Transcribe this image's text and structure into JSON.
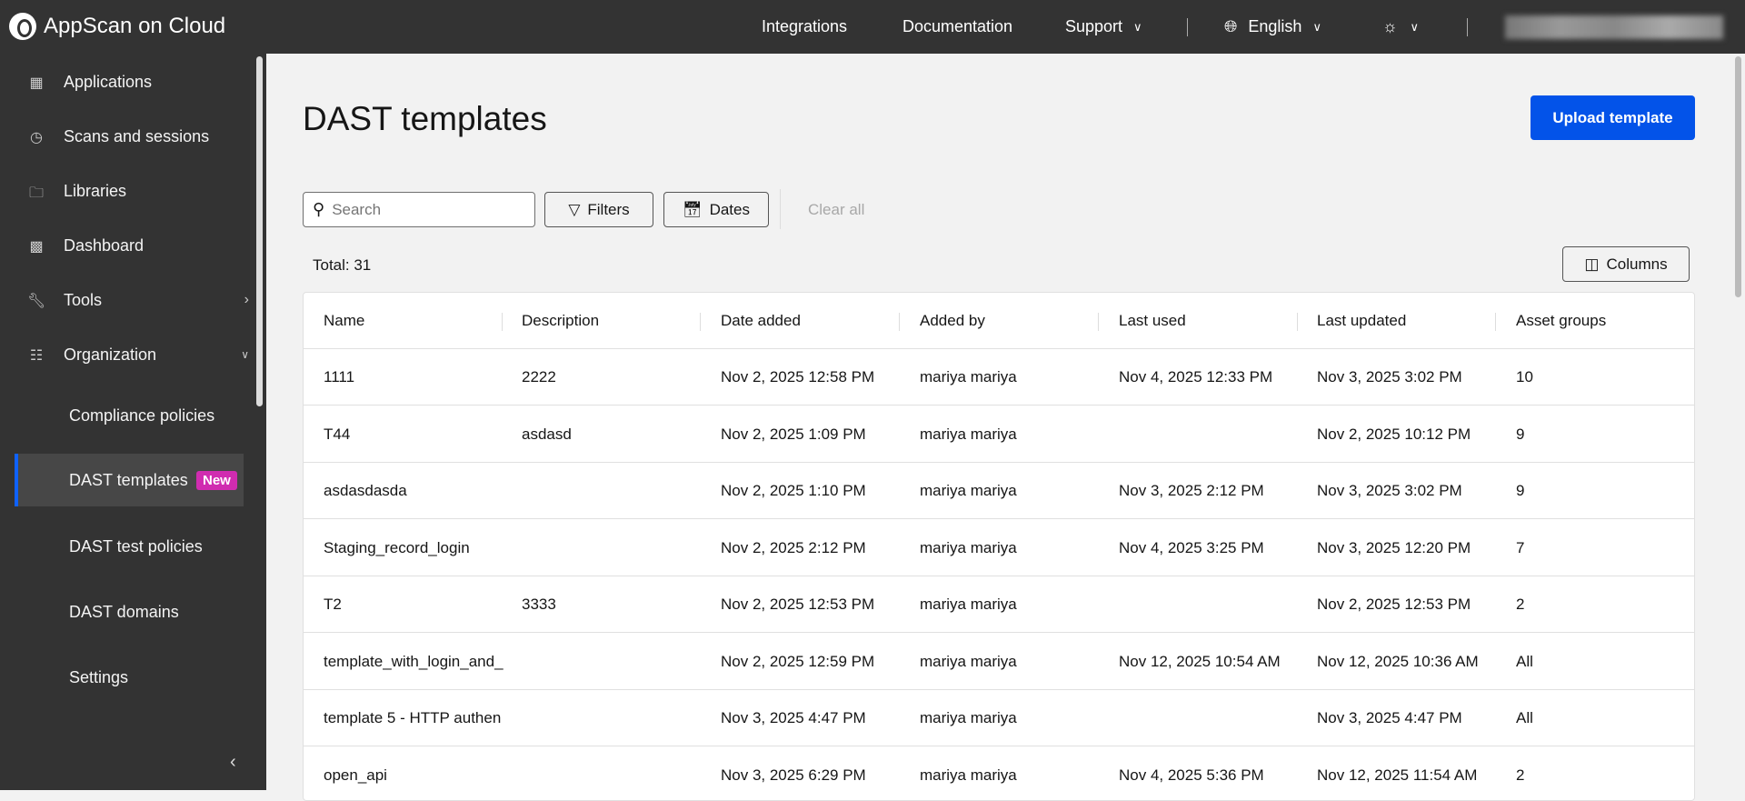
{
  "header": {
    "app_name": "AppScan on Cloud",
    "nav": [
      "Integrations",
      "Documentation",
      "Support"
    ],
    "language": "English",
    "theme_icon": "sun-icon",
    "user_name_obscured": true
  },
  "sidebar": {
    "items": [
      {
        "label": "Applications",
        "icon": "applications-icon"
      },
      {
        "label": "Scans and sessions",
        "icon": "scans-icon"
      },
      {
        "label": "Libraries",
        "icon": "folder-code-icon"
      },
      {
        "label": "Dashboard",
        "icon": "chart-bar-icon"
      },
      {
        "label": "Tools",
        "icon": "wrench-icon"
      },
      {
        "label": "Organization",
        "icon": "hierarchy-icon"
      }
    ],
    "sub_items": [
      {
        "label": "Compliance policies"
      },
      {
        "label": "DAST templates",
        "badge": "New",
        "active": true
      },
      {
        "label": "DAST test policies"
      },
      {
        "label": "DAST domains"
      },
      {
        "label": "Settings"
      }
    ],
    "accent": "#0f62fe",
    "badge_color": "#d02cb0"
  },
  "main": {
    "title": "DAST templates",
    "upload_label": "Upload template",
    "search_placeholder": "Search",
    "filters_label": "Filters",
    "dates_label": "Dates",
    "clear_all_label": "Clear all",
    "total": "Total: 31",
    "columns_label": "Columns",
    "primary_color": "#0353e9"
  },
  "table": {
    "headers": [
      "Name",
      "Description",
      "Date added",
      "Added by",
      "Last used",
      "Last updated",
      "Asset groups"
    ],
    "rows": [
      [
        "1111",
        "2222",
        "Nov 2, 2025 12:58 PM",
        "mariya mariya",
        "Nov 4, 2025 12:33 PM",
        "Nov 3, 2025 3:02 PM",
        "10"
      ],
      [
        "T44",
        "asdasd",
        "Nov 2, 2025 1:09 PM",
        "mariya mariya",
        "",
        "Nov 2, 2025 10:12 PM",
        "9"
      ],
      [
        "asdasdasda",
        "",
        "Nov 2, 2025 1:10 PM",
        "mariya mariya",
        "Nov 3, 2025 2:12 PM",
        "Nov 3, 2025 3:02 PM",
        "9"
      ],
      [
        "Staging_record_login",
        "",
        "Nov 2, 2025 2:12 PM",
        "mariya mariya",
        "Nov 4, 2025 3:25 PM",
        "Nov 3, 2025 12:20 PM",
        "7"
      ],
      [
        "T2",
        "3333",
        "Nov 2, 2025 12:53 PM",
        "mariya mariya",
        "",
        "Nov 2, 2025 12:53 PM",
        "2"
      ],
      [
        "template_with_login_and_",
        "",
        "Nov 2, 2025 12:59 PM",
        "mariya mariya",
        "Nov 12, 2025 10:54 AM",
        "Nov 12, 2025 10:36 AM",
        "All"
      ],
      [
        "template 5 - HTTP authen",
        "",
        "Nov 3, 2025 4:47 PM",
        "mariya mariya",
        "",
        "Nov 3, 2025 4:47 PM",
        "All"
      ],
      [
        "open_api",
        "",
        "Nov 3, 2025 6:29 PM",
        "mariya mariya",
        "Nov 4, 2025 5:36 PM",
        "Nov 12, 2025 11:54 AM",
        "2"
      ]
    ]
  }
}
